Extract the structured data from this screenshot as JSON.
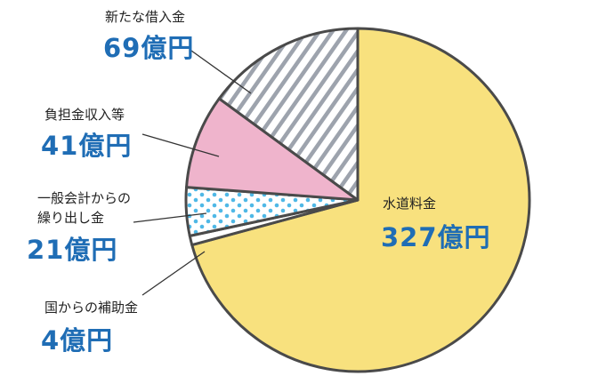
{
  "chart_data": {
    "type": "pie",
    "categories": [
      "水道料金",
      "国からの補助金",
      "一般会計からの\n繰り出し金",
      "負担金収入等",
      "新たな借入金"
    ],
    "values": [
      327,
      4,
      21,
      41,
      69
    ],
    "value_labels": [
      "327億円",
      "4億円",
      "21億円",
      "41億円",
      "69億円"
    ],
    "colors": [
      "#f8e17e",
      "#ffffff",
      "#4fb8e6",
      "#efb4cc",
      "#9da3ad"
    ],
    "patterns": [
      "solid",
      "solid",
      "dots",
      "solid",
      "hatch"
    ],
    "start_angle": 0,
    "direction": "clockwise"
  }
}
